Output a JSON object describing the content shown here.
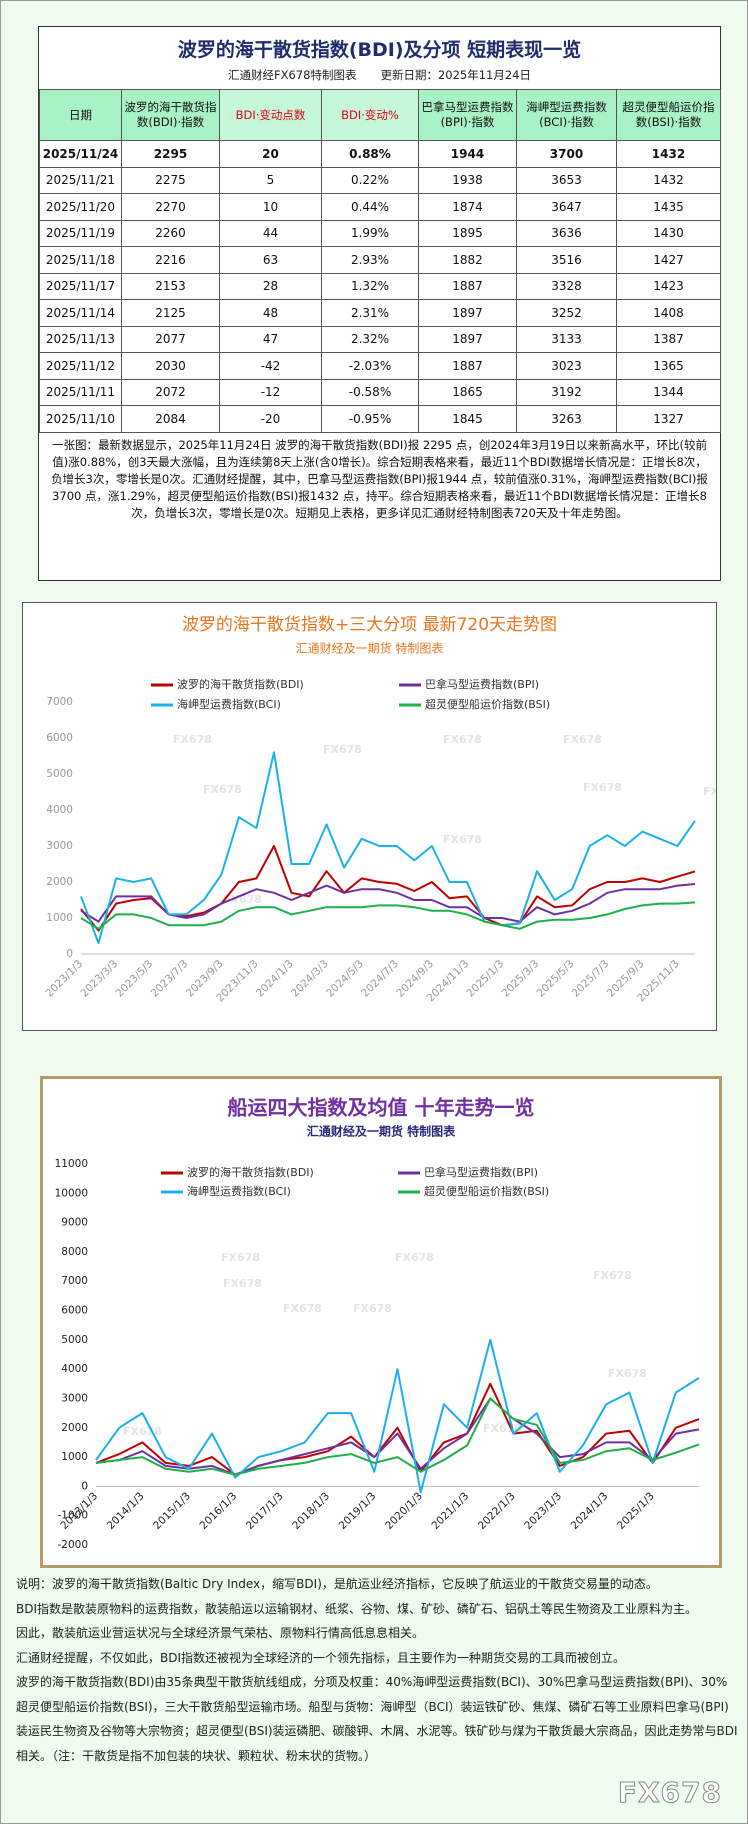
{
  "header": {
    "title": "波罗的海干散货指数(BDI)及分项 短期表现一览",
    "source": "汇通财经FX678特制图表",
    "updated": "更新日期：2025年11月24日"
  },
  "table": {
    "header": [
      "日期",
      "波罗的海干散货指数(BDI)·指数",
      "BDI·变动点数",
      "BDI·变动%",
      "巴拿马型运费指数(BPI)·指数",
      "海岬型运费指数(BCI)·指数",
      "超灵便型船运价指数(BSI)·指数"
    ],
    "rows": [
      [
        "2025/11/24",
        "2295",
        "20",
        "0.88%",
        "1944",
        "3700",
        "1432"
      ],
      [
        "2025/11/21",
        "2275",
        "5",
        "0.22%",
        "1938",
        "3653",
        "1432"
      ],
      [
        "2025/11/20",
        "2270",
        "10",
        "0.44%",
        "1874",
        "3647",
        "1435"
      ],
      [
        "2025/11/19",
        "2260",
        "44",
        "1.99%",
        "1895",
        "3636",
        "1430"
      ],
      [
        "2025/11/18",
        "2216",
        "63",
        "2.93%",
        "1882",
        "3516",
        "1427"
      ],
      [
        "2025/11/17",
        "2153",
        "28",
        "1.32%",
        "1887",
        "3328",
        "1423"
      ],
      [
        "2025/11/14",
        "2125",
        "48",
        "2.31%",
        "1897",
        "3252",
        "1408"
      ],
      [
        "2025/11/13",
        "2077",
        "47",
        "2.32%",
        "1897",
        "3133",
        "1387"
      ],
      [
        "2025/11/12",
        "2030",
        "-42",
        "-2.03%",
        "1887",
        "3023",
        "1365"
      ],
      [
        "2025/11/11",
        "2072",
        "-12",
        "-0.58%",
        "1865",
        "3192",
        "1344"
      ],
      [
        "2025/11/10",
        "2084",
        "-20",
        "-0.95%",
        "1845",
        "3263",
        "1327"
      ]
    ]
  },
  "summary": "一张图：最新数据显示，2025年11月24日 波罗的海干散货指数(BDI)报 2295 点，创2024年3月19日以来新高水平，环比(较前值)涨0.88%，创3天最大涨幅，且为连续第8天上涨(含0增长)。综合短期表格来看，最近11个BDI数据增长情况是：正增长8次，负增长3次，零增长是0次。汇通财经提醒，其中，巴拿马型运费指数(BPI)报1944 点，较前值涨0.31%，海岬型运费指数(BCI)报3700 点，涨1.29%，超灵便型船运价指数(BSI)报1432 点，持平。综合短期表格来看，最近11个BDI数据增长情况是：正增长8次，负增长3次，零增长是0次。短期见上表格，更多详见汇通财经特制图表720天及十年走势图。",
  "watermark": "FX678",
  "chart_data": [
    {
      "type": "line",
      "title": "波罗的海干散货指数+三大分项  最新720天走势图",
      "subtitle": "汇通财经及一期货  特制图表",
      "title_color": "#e8761e",
      "categories": [
        "2023/1/3",
        null,
        "2023/3/3",
        null,
        "2023/5/3",
        null,
        "2023/7/3",
        null,
        "2023/9/3",
        null,
        "2023/11/3",
        null,
        "2024/1/3",
        null,
        "2024/3/3",
        null,
        "2024/5/3",
        null,
        "2024/7/3",
        null,
        "2024/9/3",
        null,
        "2024/11/3",
        null,
        "2025/1/3",
        null,
        "2025/3/3",
        null,
        "2025/5/3",
        null,
        "2025/7/3",
        null,
        "2025/9/3",
        null,
        "2025/11/3",
        null
      ],
      "ylim": [
        0,
        7000
      ],
      "yticks": [
        0,
        1000,
        2000,
        3000,
        4000,
        5000,
        6000,
        7000
      ],
      "grid": false,
      "series": [
        {
          "name": "波罗的海干散货指数(BDI)",
          "color": "#c00000",
          "values": [
            1250,
            650,
            1400,
            1500,
            1550,
            1100,
            1050,
            1150,
            1400,
            2000,
            2100,
            3000,
            1700,
            1600,
            2300,
            1700,
            2100,
            2000,
            1950,
            1750,
            2000,
            1550,
            1600,
            1000,
            800,
            850,
            1600,
            1300,
            1350,
            1800,
            2000,
            2000,
            2100,
            2000,
            2150,
            2295
          ]
        },
        {
          "name": "巴拿马型运费指数(BPI)",
          "color": "#7030a0",
          "values": [
            1200,
            900,
            1600,
            1600,
            1600,
            1100,
            1000,
            1100,
            1400,
            1600,
            1800,
            1700,
            1500,
            1700,
            1900,
            1700,
            1800,
            1800,
            1700,
            1500,
            1500,
            1300,
            1300,
            1000,
            1000,
            900,
            1300,
            1100,
            1200,
            1400,
            1700,
            1800,
            1800,
            1800,
            1900,
            1944
          ]
        },
        {
          "name": "海岬型运费指数(BCI)",
          "color": "#1ab0ec",
          "values": [
            1600,
            300,
            2100,
            2000,
            2100,
            1100,
            1100,
            1500,
            2200,
            3800,
            3500,
            5600,
            2500,
            2500,
            3600,
            2400,
            3200,
            3000,
            3000,
            2600,
            3000,
            2000,
            2000,
            900,
            800,
            850,
            2300,
            1500,
            1800,
            3000,
            3300,
            3000,
            3400,
            3200,
            3000,
            3700
          ]
        },
        {
          "name": "超灵便型船运价指数(BSI)",
          "color": "#1eb04a",
          "values": [
            1000,
            700,
            1100,
            1100,
            1000,
            800,
            800,
            800,
            900,
            1200,
            1300,
            1300,
            1100,
            1200,
            1300,
            1300,
            1300,
            1350,
            1350,
            1300,
            1200,
            1200,
            1100,
            900,
            800,
            700,
            900,
            950,
            950,
            1000,
            1100,
            1250,
            1350,
            1400,
            1400,
            1432
          ]
        }
      ]
    },
    {
      "type": "line",
      "title": "船运四大指数及均值 十年走势一览",
      "subtitle": "汇通财经及一期货 特制图表",
      "title_color": "#7030a0",
      "categories": [
        "2013/1/3",
        null,
        "2014/1/3",
        null,
        "2015/1/3",
        null,
        "2016/1/3",
        null,
        "2017/1/3",
        null,
        "2018/1/3",
        null,
        "2019/1/3",
        null,
        "2020/1/3",
        null,
        "2021/1/3",
        null,
        "2022/1/3",
        null,
        "2023/1/3",
        null,
        "2024/1/3",
        null,
        "2025/1/3",
        null,
        null
      ],
      "ylim": [
        -2000,
        11000
      ],
      "yticks": [
        -2000,
        -1000,
        0,
        1000,
        2000,
        3000,
        4000,
        5000,
        6000,
        7000,
        8000,
        9000,
        10000,
        11000
      ],
      "grid": false,
      "series": [
        {
          "name": "波罗的海干散货指数(BDI)",
          "color": "#c00000",
          "values": [
            800,
            1100,
            1500,
            800,
            700,
            1000,
            400,
            700,
            900,
            1000,
            1200,
            1700,
            1000,
            2000,
            500,
            1500,
            1800,
            3500,
            1800,
            1900,
            700,
            1000,
            1800,
            1900,
            800,
            2000,
            2295
          ]
        },
        {
          "name": "巴拿马型运费指数(BPI)",
          "color": "#7030a0",
          "values": [
            800,
            900,
            1200,
            700,
            600,
            700,
            400,
            700,
            900,
            1100,
            1300,
            1500,
            1000,
            1800,
            600,
            1300,
            1800,
            3000,
            2300,
            1800,
            1000,
            1100,
            1500,
            1500,
            900,
            1800,
            1944
          ]
        },
        {
          "name": "海岬型运费指数(BCI)",
          "color": "#1ab0ec",
          "values": [
            900,
            2000,
            2500,
            1000,
            600,
            1800,
            300,
            1000,
            1200,
            1500,
            2500,
            2500,
            500,
            4000,
            -200,
            2800,
            2000,
            5000,
            1800,
            2500,
            500,
            1400,
            2800,
            3200,
            800,
            3200,
            3700
          ]
        },
        {
          "name": "超灵便型船运价指数(BSI)",
          "color": "#1eb04a",
          "values": [
            800,
            900,
            1000,
            600,
            500,
            600,
            400,
            600,
            700,
            800,
            1000,
            1100,
            800,
            1000,
            500,
            900,
            1400,
            3000,
            2300,
            2100,
            800,
            900,
            1200,
            1300,
            900,
            1150,
            1432
          ]
        }
      ]
    }
  ],
  "notes": [
    "说明：波罗的海干散货指数(Baltic Dry Index，缩写BDI)，是航运业经济指标，它反映了航运业的干散货交易量的动态。",
    "BDI指数是散装原物料的运费指数，散装船运以运输钢材、纸浆、谷物、煤、矿砂、磷矿石、铝矾土等民生物资及工业原料为主。",
    "因此，散装航运业营运状况与全球经济景气荣枯、原物料行情高低息息相关。",
    "汇通财经提醒，不仅如此，BDI指数还被视为全球经济的一个领先指标，且主要作为一种期货交易的工具而被创立。",
    "波罗的海干散货指数(BDI)由35条典型干散货航线组成，分项及权重：40%海岬型运费指数(BCI)、30%巴拿马型运费指数(BPI)、30%超灵便型船运价指数(BSI)，三大干散货船型运输市场。船型与货物：海岬型（BCI）装运铁矿砂、焦煤、磷矿石等工业原料巴拿马(BPI)装运民生物资及谷物等大宗物资；超灵便型(BSI)装运磷肥、碳酸钾、木屑、水泥等。铁矿砂与煤为干散货最大宗商品，因此走势常与BDI相关。（注：干散货是指不加包装的块状、颗粒状、粉末状的货物。）"
  ]
}
